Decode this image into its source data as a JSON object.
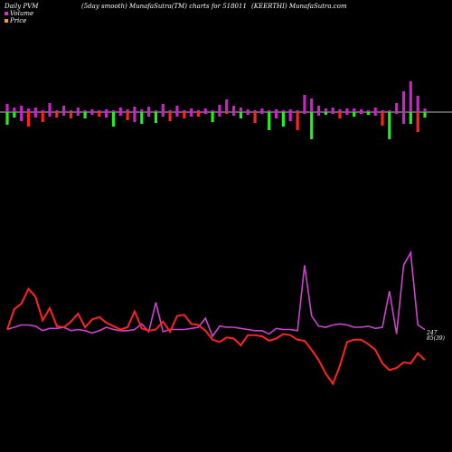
{
  "header": {
    "left": "Daily PVM",
    "center": "(5day smooth) MunafaSutra(TM) charts for 518011",
    "right": "(KEERTHI) MunafaSutra.com"
  },
  "legend": [
    {
      "label": "Volume",
      "color": "#cc33cc"
    },
    {
      "label": "Price",
      "color": "#ff9933"
    }
  ],
  "colors": {
    "bar_up": "#22ee22",
    "bar_down": "#ff2222",
    "bar_mag": "#cc22cc",
    "volume_line": "#cc44cc",
    "price_line": "#ff2222",
    "baseline": "#bbbbbb"
  },
  "end_labels": {
    "price": "247",
    "volume": "85(39)"
  },
  "chart_data": {
    "type": "bar+line",
    "series": [
      {
        "name": "Volume",
        "kind": "bar",
        "values": [
          [
            9,
            -14,
            "g"
          ],
          [
            5,
            -6,
            "g"
          ],
          [
            7,
            -10,
            "m"
          ],
          [
            4,
            -16,
            "r"
          ],
          [
            5,
            -6,
            "m"
          ],
          [
            2,
            -11,
            "r"
          ],
          [
            10,
            -5,
            "m"
          ],
          [
            2,
            -6,
            "r"
          ],
          [
            7,
            -4,
            "m"
          ],
          [
            2,
            -7,
            "r"
          ],
          [
            5,
            -4,
            "m"
          ],
          [
            2,
            -7,
            "g"
          ],
          [
            3,
            -3,
            "m"
          ],
          [
            2,
            -5,
            "r"
          ],
          [
            3,
            -6,
            "m"
          ],
          [
            2,
            -16,
            "g"
          ],
          [
            5,
            -4,
            "m"
          ],
          [
            3,
            -9,
            "r"
          ],
          [
            6,
            -11,
            "m"
          ],
          [
            3,
            -13,
            "g"
          ],
          [
            6,
            -5,
            "m"
          ],
          [
            2,
            -12,
            "g"
          ],
          [
            9,
            -5,
            "m"
          ],
          [
            2,
            -10,
            "r"
          ],
          [
            7,
            -5,
            "m"
          ],
          [
            2,
            -7,
            "r"
          ],
          [
            4,
            -5,
            "m"
          ],
          [
            2,
            -5,
            "r"
          ],
          [
            4,
            -2,
            "m"
          ],
          [
            2,
            -11,
            "g"
          ],
          [
            8,
            -5,
            "m"
          ],
          [
            14,
            -2,
            "r"
          ],
          [
            7,
            -4,
            "m"
          ],
          [
            5,
            -7,
            "g"
          ],
          [
            3,
            -3,
            "m"
          ],
          [
            2,
            -12,
            "r"
          ],
          [
            4,
            -2,
            "m"
          ],
          [
            2,
            -20,
            "g"
          ],
          [
            3,
            -7,
            "m"
          ],
          [
            2,
            -16,
            "g"
          ],
          [
            3,
            -10,
            "m"
          ],
          [
            2,
            -20,
            "r"
          ],
          [
            19,
            -2,
            "m"
          ],
          [
            15,
            -30,
            "g"
          ],
          [
            7,
            -4,
            "m"
          ],
          [
            4,
            -3,
            "g"
          ],
          [
            5,
            -2,
            "m"
          ],
          [
            3,
            -7,
            "r"
          ],
          [
            4,
            -3,
            "m"
          ],
          [
            4,
            -5,
            "g"
          ],
          [
            3,
            -2,
            "m"
          ],
          [
            2,
            -3,
            "g"
          ],
          [
            5,
            -4,
            "m"
          ],
          [
            2,
            -15,
            "r"
          ],
          [
            2,
            -30,
            "g"
          ],
          [
            10,
            -2,
            "m"
          ],
          [
            23,
            -13,
            "m"
          ],
          [
            34,
            -13,
            "g"
          ],
          [
            18,
            -22,
            "r"
          ],
          [
            4,
            -6,
            "g"
          ]
        ]
      },
      {
        "name": "Volume",
        "kind": "line",
        "values": [
          6,
          8,
          10,
          10,
          9,
          5,
          7,
          7,
          8,
          5,
          6,
          5,
          3,
          5,
          8,
          6,
          5,
          5,
          6,
          11,
          4,
          30,
          4,
          6,
          6,
          6,
          7,
          8,
          16,
          0,
          9,
          8,
          8,
          7,
          6,
          5,
          5,
          2,
          7,
          6,
          6,
          5,
          63,
          18,
          9,
          8,
          10,
          11,
          10,
          8,
          8,
          9,
          7,
          8,
          40,
          2,
          63,
          74,
          10,
          6
        ]
      },
      {
        "name": "Price",
        "kind": "line",
        "values": [
          6,
          24,
          29,
          42,
          35,
          14,
          25,
          9,
          8,
          13,
          20,
          8,
          15,
          17,
          12,
          9,
          6,
          8,
          22,
          7,
          5,
          6,
          13,
          4,
          18,
          19,
          11,
          10,
          5,
          -3,
          -5,
          -1,
          -2,
          -8,
          1,
          1,
          0,
          -4,
          -2,
          2,
          1,
          -3,
          -4,
          -12,
          -21,
          -33,
          -42,
          -26,
          -5,
          -3,
          -3,
          -7,
          -12,
          -24,
          -30,
          -28,
          -23,
          -24,
          -15,
          -21
        ]
      }
    ]
  }
}
